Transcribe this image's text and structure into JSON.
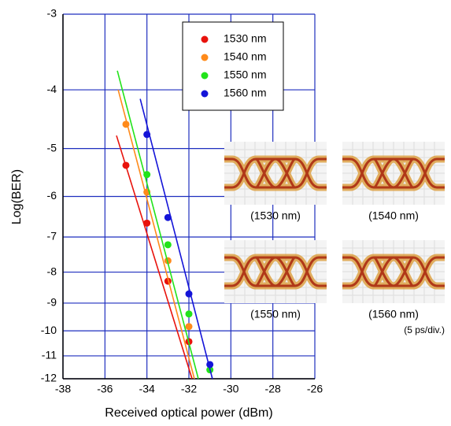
{
  "chart_data": {
    "type": "scatter-fit",
    "x_label": "Received optical power (dBm)",
    "y_label": "Log(BER)",
    "xlim": [
      -38,
      -26
    ],
    "xticks": [
      -38,
      -36,
      -34,
      -32,
      -30,
      -28,
      -26
    ],
    "ylim": [
      -3,
      -12
    ],
    "yticks": [
      -3,
      -4,
      -5,
      -6,
      -7,
      -8,
      -9,
      -10,
      -11,
      -12
    ],
    "yscale": "log-negative",
    "grid": true,
    "legend": "upper center",
    "series": [
      {
        "name": "1530 nm",
        "color": "#e8120c",
        "x": [
          -35,
          -34,
          -33,
          -32
        ],
        "values": [
          -5.33,
          -6.64,
          -8.28,
          -10.42
        ],
        "fit_x": [
          -35.45,
          -31.85
        ],
        "fit_y": [
          -4.76,
          -12
        ]
      },
      {
        "name": "1540 nm",
        "color": "#ff8a1a",
        "x": [
          -35,
          -34,
          -33,
          -32
        ],
        "values": [
          -4.56,
          -5.9,
          -7.66,
          -9.84
        ],
        "fit_x": [
          -35.37,
          -31.74
        ],
        "fit_y": [
          -4,
          -12
        ]
      },
      {
        "name": "1550 nm",
        "color": "#22e31a",
        "x": [
          -34,
          -33,
          -32,
          -31
        ],
        "values": [
          -5.52,
          -7.21,
          -9.38,
          -11.6
        ],
        "fit_x": [
          -35.41,
          -31.55
        ],
        "fit_y": [
          -3.72,
          -12
        ]
      },
      {
        "name": "1560 nm",
        "color": "#1414d8",
        "x": [
          -34,
          -33,
          -32,
          -31
        ],
        "values": [
          -4.74,
          -6.5,
          -8.69,
          -11.37
        ],
        "fit_x": [
          -34.32,
          -30.88
        ],
        "fit_y": [
          -4.14,
          -12
        ]
      }
    ]
  },
  "eye_diagrams": [
    {
      "label": "(1530 nm)"
    },
    {
      "label": "(1540 nm)"
    },
    {
      "label": "(1550 nm)"
    },
    {
      "label": "(1560 nm)"
    }
  ],
  "note": "(5 ps/div.)"
}
